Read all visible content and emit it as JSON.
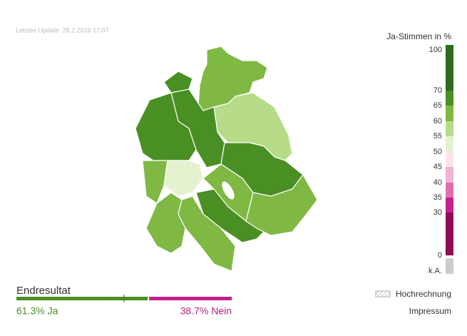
{
  "update": "Letztes Update: 28.2.2016 17:07",
  "legend": {
    "title": "Ja-Stimmen in %",
    "ticks": [
      100,
      70,
      65,
      60,
      55,
      50,
      45,
      40,
      35,
      30,
      0
    ],
    "no_data": "k.A."
  },
  "result": {
    "title": "Endresultat",
    "ja": {
      "value": 61.3,
      "label": "61.3% Ja"
    },
    "nein": {
      "value": 38.7,
      "label": "38.7% Nein"
    }
  },
  "projection": "Hochrechnung",
  "imprint": "Impressum"
}
